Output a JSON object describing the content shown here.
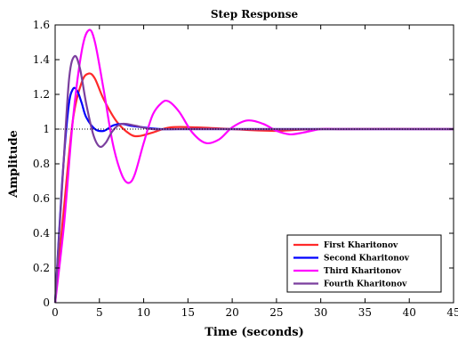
{
  "chart_data": {
    "type": "line",
    "title": "Step Response",
    "xlabel": "Time (seconds)",
    "ylabel": "Amplitude",
    "xlim": [
      0,
      45
    ],
    "ylim": [
      0,
      1.6
    ],
    "x_ticks": [
      0,
      5,
      10,
      15,
      20,
      25,
      30,
      35,
      40,
      45
    ],
    "y_ticks": [
      0,
      0.2,
      0.4,
      0.6,
      0.8,
      1,
      1.2,
      1.4,
      1.6
    ],
    "x_tick_labels": [
      "0",
      "5",
      "10",
      "15",
      "20",
      "25",
      "30",
      "35",
      "40",
      "45"
    ],
    "y_tick_labels": [
      "0",
      "0.2",
      "0.4",
      "0.6",
      "0.8",
      "1",
      "1.2",
      "1.4",
      "1.6"
    ],
    "grid": false,
    "legend_position": "bottom-right",
    "reference_line": {
      "y": 1,
      "style": "dotted",
      "color": "#000000"
    },
    "series": [
      {
        "name": "First Kharitonov",
        "color": "#ff2a2a",
        "x": [
          0,
          1,
          2,
          3,
          3.8,
          4.5,
          5.5,
          7,
          8.5,
          9.5,
          11,
          13,
          16,
          20,
          25,
          30,
          45
        ],
        "y": [
          0,
          0.55,
          1.05,
          1.27,
          1.32,
          1.29,
          1.17,
          1.04,
          0.97,
          0.96,
          0.98,
          1.01,
          1.01,
          1.0,
          0.99,
          1.0,
          1.0
        ]
      },
      {
        "name": "Second Kharitonov",
        "color": "#0000ff",
        "x": [
          0,
          0.8,
          1.5,
          2,
          2.5,
          3,
          3.5,
          4.5,
          5.5,
          6.5,
          7.5,
          8.5,
          10,
          12,
          15,
          20,
          45
        ],
        "y": [
          0,
          0.7,
          1.12,
          1.23,
          1.22,
          1.15,
          1.07,
          1.0,
          0.99,
          1.02,
          1.03,
          1.02,
          1.01,
          1.0,
          1.0,
          1.0,
          1.0
        ]
      },
      {
        "name": "Third Kharitonov",
        "color": "#ff00ff",
        "x": [
          0,
          1,
          2,
          3,
          3.8,
          4.5,
          5.5,
          6.5,
          7.5,
          8.3,
          9,
          10,
          11,
          12,
          12.8,
          14,
          15.5,
          17,
          18.5,
          20,
          21.7,
          23.5,
          25,
          26.5,
          28,
          30,
          32,
          35,
          45
        ],
        "y": [
          0,
          0.45,
          1.05,
          1.45,
          1.57,
          1.5,
          1.22,
          0.92,
          0.74,
          0.69,
          0.74,
          0.92,
          1.08,
          1.15,
          1.16,
          1.1,
          0.98,
          0.92,
          0.94,
          1.01,
          1.05,
          1.03,
          0.99,
          0.97,
          0.98,
          1.0,
          1.0,
          1.0,
          1.0
        ]
      },
      {
        "name": "Fourth Kharitonov",
        "color": "#7b3f9e",
        "x": [
          0,
          1,
          1.6,
          2.2,
          2.8,
          3.5,
          4.3,
          5,
          5.7,
          6.5,
          7.5,
          9,
          11,
          14,
          20,
          45
        ],
        "y": [
          0,
          0.85,
          1.3,
          1.42,
          1.35,
          1.15,
          0.97,
          0.9,
          0.92,
          0.99,
          1.03,
          1.02,
          1.0,
          1.0,
          1.0,
          1.0
        ]
      }
    ]
  }
}
